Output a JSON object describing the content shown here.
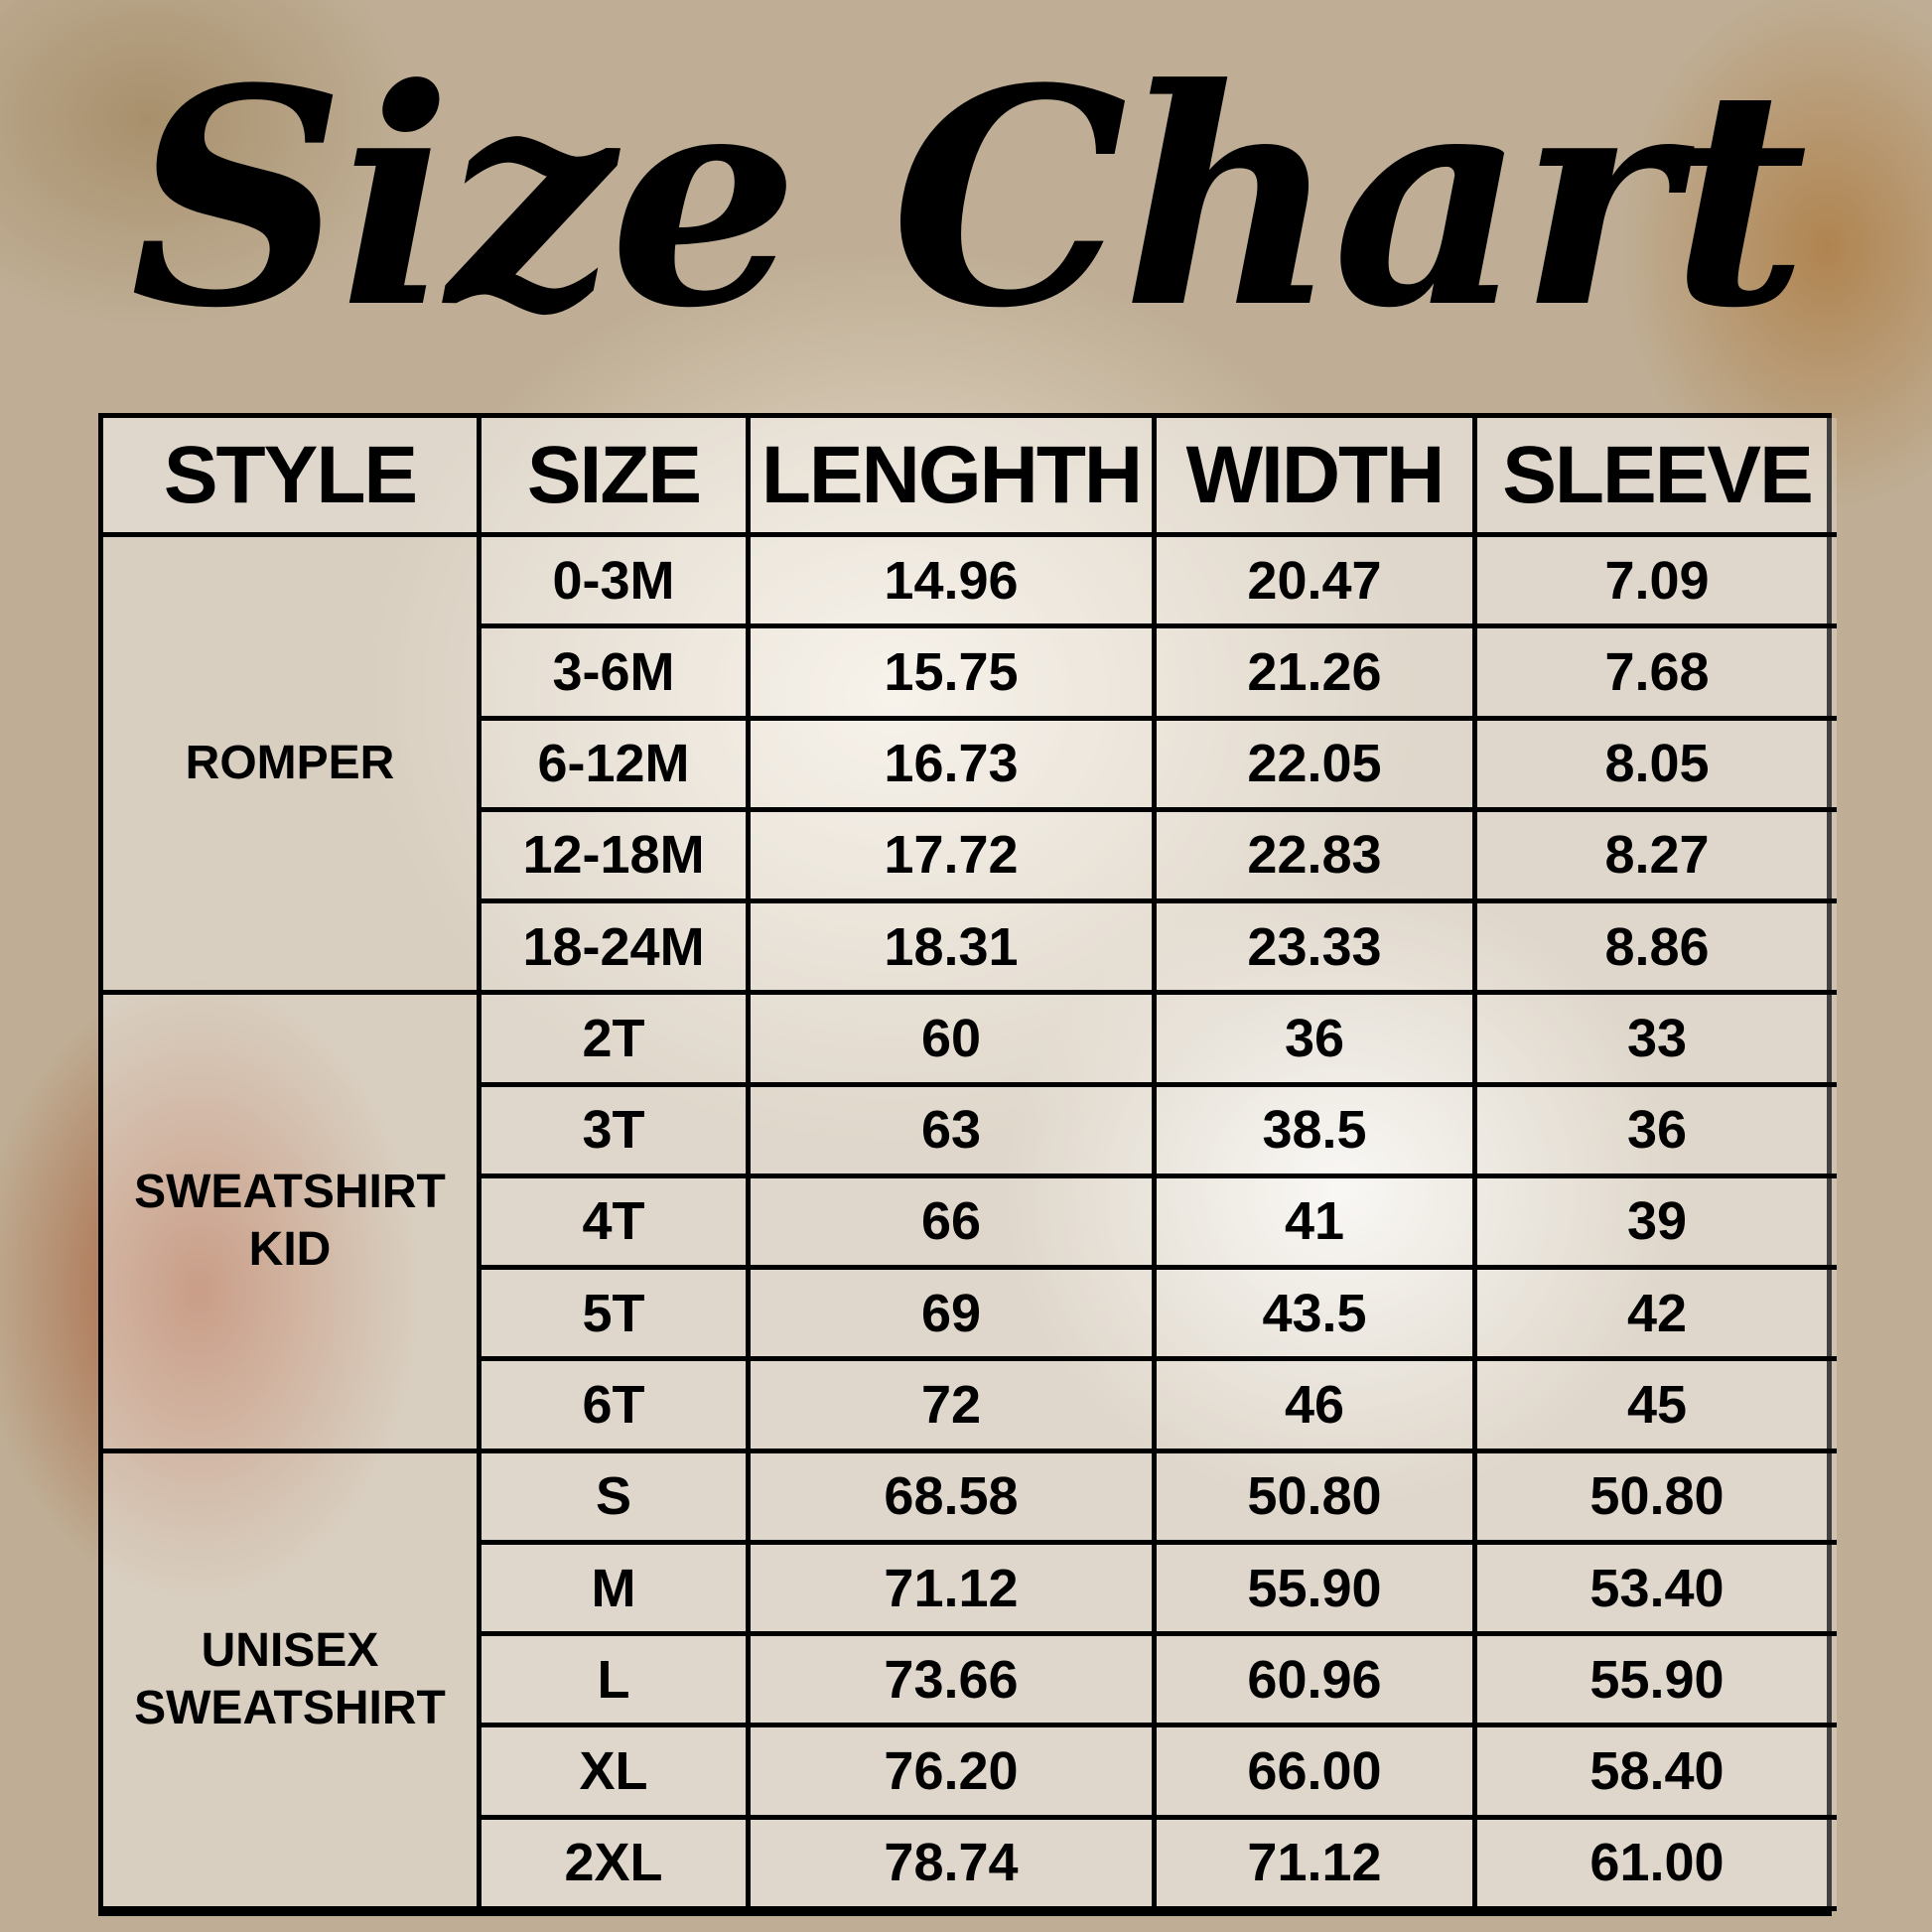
{
  "title": "Size Chart",
  "headers": [
    "STYLE",
    "SIZE",
    "LENGHTH",
    "WIDTH",
    "SLEEVE"
  ],
  "groups": [
    {
      "style": [
        "ROMPER"
      ],
      "rows": [
        [
          "0-3M",
          "14.96",
          "20.47",
          "7.09"
        ],
        [
          "3-6M",
          "15.75",
          "21.26",
          "7.68"
        ],
        [
          "6-12M",
          "16.73",
          "22.05",
          "8.05"
        ],
        [
          "12-18M",
          "17.72",
          "22.83",
          "8.27"
        ],
        [
          "18-24M",
          "18.31",
          "23.33",
          "8.86"
        ]
      ]
    },
    {
      "style": [
        "SWEATSHIRT",
        "KID"
      ],
      "rows": [
        [
          "2T",
          "60",
          "36",
          "33"
        ],
        [
          "3T",
          "63",
          "38.5",
          "36"
        ],
        [
          "4T",
          "66",
          "41",
          "39"
        ],
        [
          "5T",
          "69",
          "43.5",
          "42"
        ],
        [
          "6T",
          "72",
          "46",
          "45"
        ]
      ]
    },
    {
      "style": [
        "UNISEX",
        "SWEATSHIRT"
      ],
      "rows": [
        [
          "S",
          "68.58",
          "50.80",
          "50.80"
        ],
        [
          "M",
          "71.12",
          "55.90",
          "53.40"
        ],
        [
          "L",
          "73.66",
          "60.96",
          "55.90"
        ],
        [
          "XL",
          "76.20",
          "66.00",
          "58.40"
        ],
        [
          "2XL",
          "78.74",
          "71.12",
          "61.00"
        ]
      ]
    }
  ]
}
